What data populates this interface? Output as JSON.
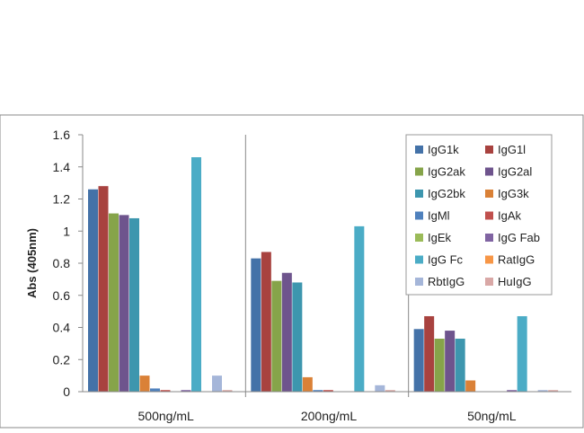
{
  "chart_data": {
    "type": "bar",
    "title": "",
    "xlabel": "",
    "ylabel": "Abs (405nm)",
    "ylim": [
      0,
      1.6
    ],
    "yticks": [
      "0",
      "0.2",
      "0.4",
      "0.6",
      "0.8",
      "1",
      "1.2",
      "1.4",
      "1.6"
    ],
    "ytick_values": [
      0,
      0.2,
      0.4,
      0.6,
      0.8,
      1.0,
      1.2,
      1.4,
      1.6
    ],
    "categories": [
      "500ng/mL",
      "200ng/mL",
      "50ng/mL"
    ],
    "grid": false,
    "legend_position": "top-right",
    "series": [
      {
        "name": "IgG1k",
        "color": "#4472a8",
        "values": [
          1.26,
          0.83,
          0.39
        ]
      },
      {
        "name": "IgG1l",
        "color": "#a8423f",
        "values": [
          1.28,
          0.87,
          0.47
        ]
      },
      {
        "name": "IgG2ak",
        "color": "#86a44a",
        "values": [
          1.11,
          0.69,
          0.33
        ]
      },
      {
        "name": "IgG2al",
        "color": "#6e548d",
        "values": [
          1.1,
          0.74,
          0.38
        ]
      },
      {
        "name": "IgG2bk",
        "color": "#3d96ae",
        "values": [
          1.08,
          0.68,
          0.33
        ]
      },
      {
        "name": "IgG3k",
        "color": "#da8137",
        "values": [
          0.1,
          0.09,
          0.07
        ]
      },
      {
        "name": "IgMl",
        "color": "#4f81bd",
        "values": [
          0.02,
          0.01,
          0.0
        ]
      },
      {
        "name": "IgAk",
        "color": "#c0504d",
        "values": [
          0.01,
          0.01,
          0.0
        ]
      },
      {
        "name": "IgEk",
        "color": "#9bbb59",
        "values": [
          0.0,
          0.0,
          0.0
        ]
      },
      {
        "name": "IgG Fab",
        "color": "#8064a2",
        "values": [
          0.01,
          0.0,
          0.01
        ]
      },
      {
        "name": "IgG Fc",
        "color": "#4bacc6",
        "values": [
          1.46,
          1.03,
          0.47
        ]
      },
      {
        "name": "RatIgG",
        "color": "#f79646",
        "values": [
          0.0,
          0.0,
          0.0
        ]
      },
      {
        "name": "RbtIgG",
        "color": "#a5b6d9",
        "values": [
          0.1,
          0.04,
          0.01
        ]
      },
      {
        "name": "HuIgG",
        "color": "#d9a8a6",
        "values": [
          0.01,
          0.01,
          0.01
        ]
      }
    ]
  }
}
